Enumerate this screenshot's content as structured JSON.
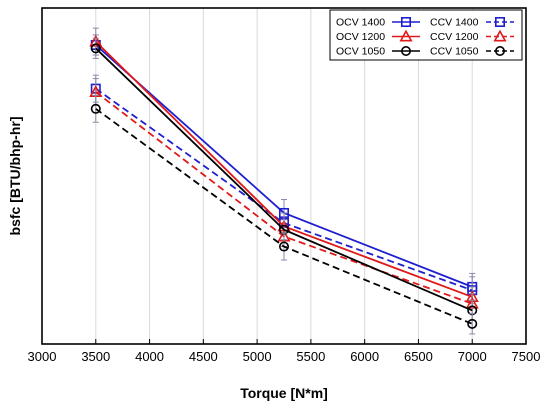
{
  "chart_data": {
    "type": "line",
    "xlabel": "Torque [N*m]",
    "ylabel": "bsfc [BTU/bhp-hr]",
    "xlim": [
      3000,
      7500
    ],
    "ylim": [
      0,
      1
    ],
    "x_ticks": [
      "3000",
      "3500",
      "4000",
      "4500",
      "5000",
      "5500",
      "6000",
      "6500",
      "7000",
      "7500"
    ],
    "y_tick_labels_shown": false,
    "grid": {
      "vertical": true,
      "horizontal": false
    },
    "legend_position": "top-right",
    "x": [
      3500,
      5250,
      7000
    ],
    "series": [
      {
        "name": "OCV 1400",
        "color": "#1f1fd0",
        "linestyle": "solid",
        "marker": "square",
        "values": [
          0.89,
          0.39,
          0.17
        ],
        "errors": [
          0.03,
          0.04,
          0.04
        ]
      },
      {
        "name": "CCV 1400",
        "color": "#1f1fd0",
        "linestyle": "dashed",
        "marker": "square",
        "values": [
          0.76,
          0.36,
          0.16
        ],
        "errors": [
          0.04,
          0.03,
          0.04
        ]
      },
      {
        "name": "OCV 1200",
        "color": "#e01a1a",
        "linestyle": "solid",
        "marker": "triangle",
        "values": [
          0.9,
          0.35,
          0.14
        ],
        "errors": [
          0.04,
          0.04,
          0.03
        ]
      },
      {
        "name": "CCV 1200",
        "color": "#e01a1a",
        "linestyle": "dashed",
        "marker": "triangle",
        "values": [
          0.75,
          0.32,
          0.12
        ],
        "errors": [
          0.04,
          0.03,
          0.03
        ]
      },
      {
        "name": "OCV 1050",
        "color": "#000000",
        "linestyle": "solid",
        "marker": "circle",
        "values": [
          0.88,
          0.34,
          0.1
        ],
        "errors": [
          0.03,
          0.03,
          0.03
        ]
      },
      {
        "name": "CCV 1050",
        "color": "#000000",
        "linestyle": "dashed",
        "marker": "circle",
        "values": [
          0.7,
          0.29,
          0.06
        ],
        "errors": [
          0.04,
          0.04,
          0.03
        ]
      }
    ]
  }
}
